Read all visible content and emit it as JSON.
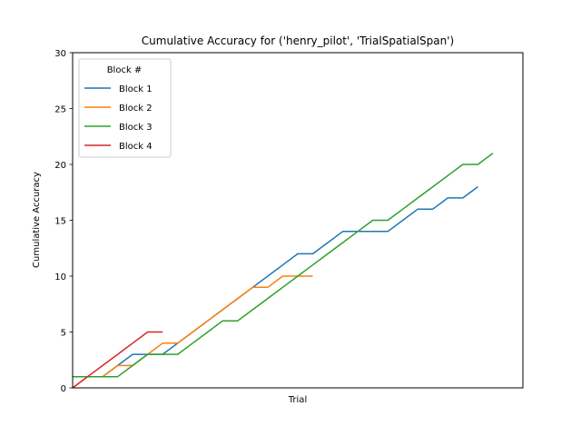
{
  "chart_data": {
    "type": "line",
    "title": "Cumulative Accuracy for ('henry_pilot', 'TrialSpatialSpan')",
    "xlabel": "Trial",
    "ylabel": "Cumulative Accuracy",
    "xlim": [
      0,
      30
    ],
    "ylim": [
      0,
      30
    ],
    "yticks": [
      0,
      5,
      10,
      15,
      20,
      25,
      30
    ],
    "xticks_shown": false,
    "grid": false,
    "legend": {
      "title": "Block #",
      "placement": "upper-left"
    },
    "series": [
      {
        "name": "Block 1",
        "color": "#1f77b4",
        "values": [
          [
            0,
            1
          ],
          [
            1,
            1
          ],
          [
            2,
            1
          ],
          [
            3,
            2
          ],
          [
            4,
            3
          ],
          [
            5,
            3
          ],
          [
            6,
            3
          ],
          [
            7,
            4
          ],
          [
            8,
            5
          ],
          [
            9,
            6
          ],
          [
            10,
            7
          ],
          [
            11,
            8
          ],
          [
            12,
            9
          ],
          [
            13,
            10
          ],
          [
            14,
            11
          ],
          [
            15,
            12
          ],
          [
            16,
            12
          ],
          [
            17,
            13
          ],
          [
            18,
            14
          ],
          [
            19,
            14
          ],
          [
            20,
            14
          ],
          [
            21,
            14
          ],
          [
            22,
            15
          ],
          [
            23,
            16
          ],
          [
            24,
            16
          ],
          [
            25,
            17
          ],
          [
            26,
            17
          ],
          [
            27,
            18
          ]
        ]
      },
      {
        "name": "Block 2",
        "color": "#ff7f0e",
        "values": [
          [
            0,
            0
          ],
          [
            1,
            1
          ],
          [
            2,
            1
          ],
          [
            3,
            2
          ],
          [
            4,
            2
          ],
          [
            5,
            3
          ],
          [
            6,
            4
          ],
          [
            7,
            4
          ],
          [
            8,
            5
          ],
          [
            9,
            6
          ],
          [
            10,
            7
          ],
          [
            11,
            8
          ],
          [
            12,
            9
          ],
          [
            13,
            9
          ],
          [
            14,
            10
          ],
          [
            15,
            10
          ],
          [
            16,
            10
          ]
        ]
      },
      {
        "name": "Block 3",
        "color": "#2ca02c",
        "values": [
          [
            0,
            1
          ],
          [
            1,
            1
          ],
          [
            2,
            1
          ],
          [
            3,
            1
          ],
          [
            4,
            2
          ],
          [
            5,
            3
          ],
          [
            6,
            3
          ],
          [
            7,
            3
          ],
          [
            8,
            4
          ],
          [
            9,
            5
          ],
          [
            10,
            6
          ],
          [
            11,
            6
          ],
          [
            12,
            7
          ],
          [
            13,
            8
          ],
          [
            14,
            9
          ],
          [
            15,
            10
          ],
          [
            16,
            11
          ],
          [
            17,
            12
          ],
          [
            18,
            13
          ],
          [
            19,
            14
          ],
          [
            20,
            15
          ],
          [
            21,
            15
          ],
          [
            22,
            16
          ],
          [
            23,
            17
          ],
          [
            24,
            18
          ],
          [
            25,
            19
          ],
          [
            26,
            20
          ],
          [
            27,
            20
          ],
          [
            28,
            21
          ]
        ]
      },
      {
        "name": "Block 4",
        "color": "#d62728",
        "values": [
          [
            0,
            0
          ],
          [
            1,
            1
          ],
          [
            2,
            2
          ],
          [
            3,
            3
          ],
          [
            4,
            4
          ],
          [
            5,
            5
          ],
          [
            6,
            5
          ]
        ]
      }
    ]
  }
}
